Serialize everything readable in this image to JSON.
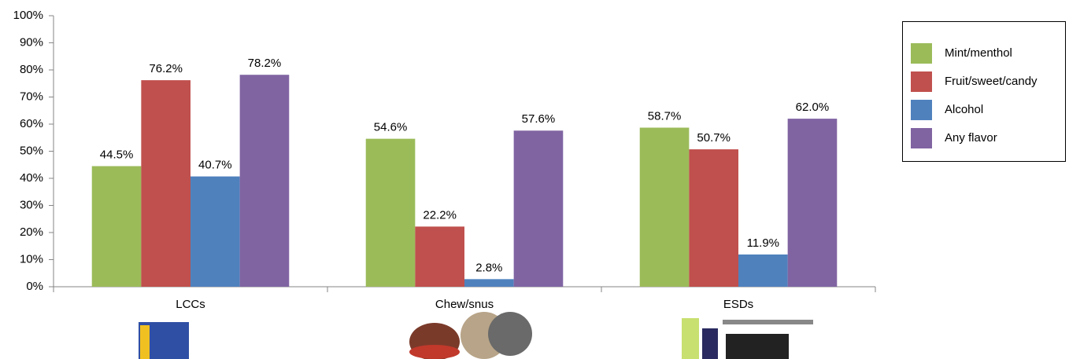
{
  "chart_data": {
    "type": "bar",
    "categories": [
      "LCCs",
      "Chew/snus",
      "ESDs"
    ],
    "series": [
      {
        "name": "Mint/menthol",
        "color": "#9bbb59",
        "values": [
          44.5,
          54.6,
          58.7
        ],
        "value_labels": [
          "44.5%",
          "54.6%",
          "58.7%"
        ]
      },
      {
        "name": "Fruit/sweet/candy",
        "color": "#c0504d",
        "values": [
          76.2,
          22.2,
          50.7
        ],
        "value_labels": [
          "76.2%",
          "22.2%",
          "50.7%"
        ]
      },
      {
        "name": "Alcohol",
        "color": "#4f81bd",
        "values": [
          40.7,
          2.8,
          11.9
        ],
        "value_labels": [
          "40.7%",
          "2.8%",
          "11.9%"
        ]
      },
      {
        "name": "Any flavor",
        "color": "#8064a2",
        "values": [
          78.2,
          57.6,
          62.0
        ],
        "value_labels": [
          "78.2%",
          "57.6%",
          "62.0%"
        ]
      }
    ],
    "ylim": [
      0,
      100
    ],
    "yticks": [
      {
        "value": 0,
        "label": "0%"
      },
      {
        "value": 10,
        "label": "10%"
      },
      {
        "value": 20,
        "label": "20%"
      },
      {
        "value": 30,
        "label": "30%"
      },
      {
        "value": 40,
        "label": "40%"
      },
      {
        "value": 50,
        "label": "50%"
      },
      {
        "value": 60,
        "label": "60%"
      },
      {
        "value": 70,
        "label": "70%"
      },
      {
        "value": 80,
        "label": "80%"
      },
      {
        "value": 90,
        "label": "90%"
      },
      {
        "value": 100,
        "label": "100%"
      }
    ],
    "legend": "right"
  }
}
